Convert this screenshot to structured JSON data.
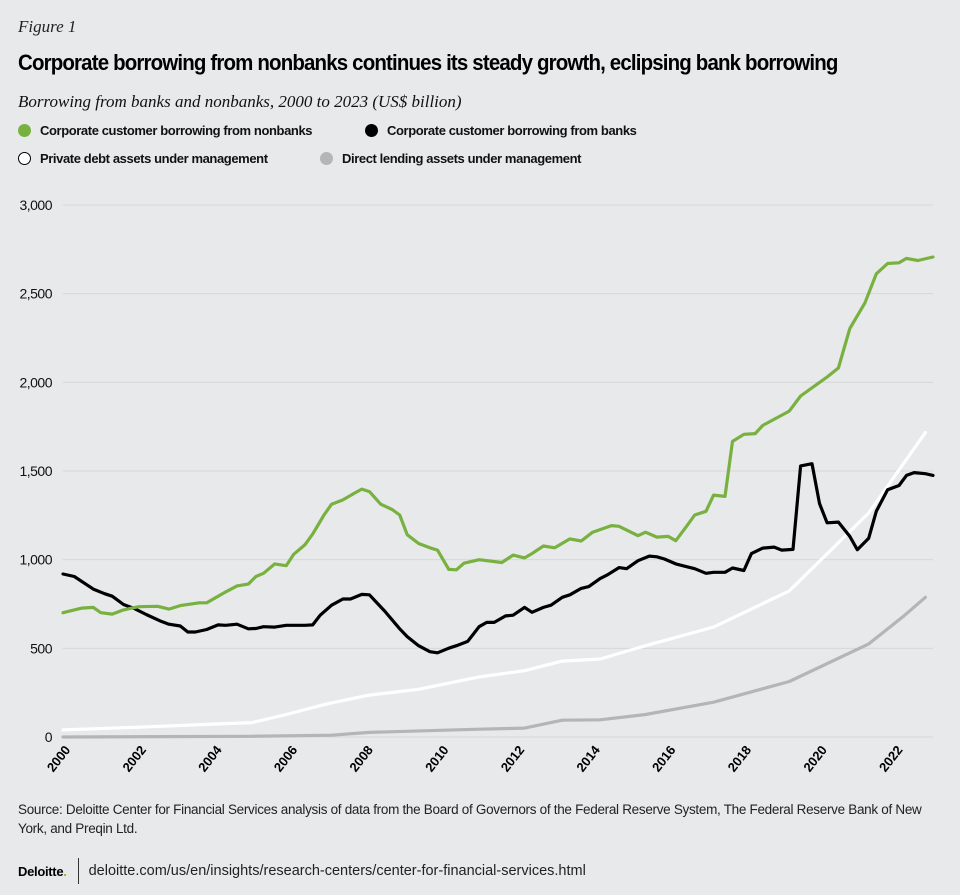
{
  "figure_label": "Figure 1",
  "footer": {
    "source": "Source: Deloitte Center for Financial Services analysis of data from the Board of Governors of the Federal Reserve System, The Federal Reserve Bank of New York, and Preqin Ltd.",
    "logo": "Deloitte",
    "url": "deloitte.com/us/en/insights/research-centers/center-for-financial-services.html"
  },
  "chart_data": {
    "type": "line",
    "title": "Corporate borrowing from nonbanks continues its steady growth, eclipsing bank borrowing",
    "subtitle": "Borrowing from banks and nonbanks, 2000 to 2023 (US$ billion)",
    "xlabel": "",
    "ylabel": "",
    "xlim": [
      2000,
      2023
    ],
    "ylim": [
      0,
      3000
    ],
    "x_ticks": [
      "2000",
      "2002",
      "2004",
      "2006",
      "2008",
      "2010",
      "2012",
      "2014",
      "2016",
      "2018",
      "2020",
      "2022"
    ],
    "y_ticks": [
      0,
      500,
      1000,
      1500,
      2000,
      2500,
      3000
    ],
    "y_tick_labels": [
      "0",
      "500",
      "1,000",
      "1,500",
      "2,000",
      "2,500",
      "3,000"
    ],
    "grid": "horizontal",
    "legend_position": "top",
    "series": [
      {
        "name": "Corporate customer borrowing from nonbanks",
        "color": "#78b13f",
        "legend_style": "filled",
        "points": [
          [
            2000.0,
            701
          ],
          [
            2000.5,
            727
          ],
          [
            2000.8,
            731
          ],
          [
            2001.0,
            701
          ],
          [
            2001.3,
            693
          ],
          [
            2001.6,
            717
          ],
          [
            2002.0,
            735
          ],
          [
            2002.5,
            737
          ],
          [
            2002.8,
            721
          ],
          [
            2003.1,
            741
          ],
          [
            2003.6,
            757
          ],
          [
            2003.8,
            757
          ],
          [
            2004.3,
            818
          ],
          [
            2004.6,
            852
          ],
          [
            2004.9,
            862
          ],
          [
            2005.1,
            905
          ],
          [
            2005.3,
            923
          ],
          [
            2005.6,
            976
          ],
          [
            2005.9,
            966
          ],
          [
            2006.1,
            1030
          ],
          [
            2006.4,
            1085
          ],
          [
            2006.6,
            1145
          ],
          [
            2006.9,
            1252
          ],
          [
            2007.1,
            1313
          ],
          [
            2007.4,
            1337
          ],
          [
            2007.7,
            1374
          ],
          [
            2007.9,
            1398
          ],
          [
            2008.1,
            1384
          ],
          [
            2008.4,
            1313
          ],
          [
            2008.7,
            1283
          ],
          [
            2008.9,
            1252
          ],
          [
            2009.1,
            1141
          ],
          [
            2009.4,
            1091
          ],
          [
            2009.7,
            1067
          ],
          [
            2009.9,
            1054
          ],
          [
            2010.2,
            945
          ],
          [
            2010.4,
            943
          ],
          [
            2010.6,
            980
          ],
          [
            2011.0,
            1000
          ],
          [
            2011.6,
            984
          ],
          [
            2011.9,
            1026
          ],
          [
            2012.2,
            1010
          ],
          [
            2012.4,
            1034
          ],
          [
            2012.7,
            1077
          ],
          [
            2013.0,
            1067
          ],
          [
            2013.4,
            1117
          ],
          [
            2013.7,
            1105
          ],
          [
            2014.0,
            1155
          ],
          [
            2014.5,
            1192
          ],
          [
            2014.7,
            1188
          ],
          [
            2015.2,
            1135
          ],
          [
            2015.4,
            1155
          ],
          [
            2015.7,
            1127
          ],
          [
            2016.0,
            1131
          ],
          [
            2016.2,
            1107
          ],
          [
            2016.5,
            1192
          ],
          [
            2016.7,
            1252
          ],
          [
            2017.0,
            1273
          ],
          [
            2017.2,
            1364
          ],
          [
            2017.5,
            1357
          ],
          [
            2017.7,
            1667
          ],
          [
            2018.0,
            1707
          ],
          [
            2018.3,
            1711
          ],
          [
            2018.5,
            1757
          ],
          [
            2019.2,
            1838
          ],
          [
            2019.5,
            1923
          ],
          [
            2020.2,
            2030
          ],
          [
            2020.5,
            2081
          ],
          [
            2020.8,
            2303
          ],
          [
            2021.2,
            2448
          ],
          [
            2021.5,
            2612
          ],
          [
            2021.8,
            2670
          ],
          [
            2022.1,
            2674
          ],
          [
            2022.3,
            2699
          ],
          [
            2022.6,
            2687
          ],
          [
            2023.0,
            2707
          ]
        ]
      },
      {
        "name": "Corporate customer borrowing from banks",
        "color": "#000000",
        "legend_style": "filled",
        "points": [
          [
            2000.0,
            919
          ],
          [
            2000.3,
            905
          ],
          [
            2000.6,
            862
          ],
          [
            2000.8,
            834
          ],
          [
            2001.1,
            808
          ],
          [
            2001.3,
            794
          ],
          [
            2001.6,
            747
          ],
          [
            2001.9,
            723
          ],
          [
            2002.2,
            691
          ],
          [
            2002.6,
            652
          ],
          [
            2002.8,
            636
          ],
          [
            2003.1,
            626
          ],
          [
            2003.3,
            592
          ],
          [
            2003.5,
            592
          ],
          [
            2003.8,
            606
          ],
          [
            2004.1,
            632
          ],
          [
            2004.3,
            630
          ],
          [
            2004.6,
            636
          ],
          [
            2004.9,
            610
          ],
          [
            2005.1,
            612
          ],
          [
            2005.3,
            622
          ],
          [
            2005.6,
            620
          ],
          [
            2005.9,
            630
          ],
          [
            2006.1,
            630
          ],
          [
            2006.4,
            630
          ],
          [
            2006.6,
            632
          ],
          [
            2006.8,
            687
          ],
          [
            2007.1,
            743
          ],
          [
            2007.4,
            778
          ],
          [
            2007.6,
            778
          ],
          [
            2007.9,
            804
          ],
          [
            2008.1,
            802
          ],
          [
            2008.5,
            711
          ],
          [
            2008.9,
            610
          ],
          [
            2009.1,
            566
          ],
          [
            2009.4,
            515
          ],
          [
            2009.7,
            481
          ],
          [
            2009.9,
            475
          ],
          [
            2010.2,
            501
          ],
          [
            2010.4,
            515
          ],
          [
            2010.7,
            539
          ],
          [
            2011.0,
            622
          ],
          [
            2011.2,
            646
          ],
          [
            2011.4,
            646
          ],
          [
            2011.7,
            683
          ],
          [
            2011.9,
            687
          ],
          [
            2012.2,
            731
          ],
          [
            2012.4,
            703
          ],
          [
            2012.7,
            731
          ],
          [
            2012.9,
            743
          ],
          [
            2013.2,
            788
          ],
          [
            2013.4,
            802
          ],
          [
            2013.7,
            838
          ],
          [
            2013.9,
            848
          ],
          [
            2014.2,
            893
          ],
          [
            2014.4,
            915
          ],
          [
            2014.7,
            955
          ],
          [
            2014.9,
            949
          ],
          [
            2015.2,
            994
          ],
          [
            2015.5,
            1020
          ],
          [
            2015.7,
            1016
          ],
          [
            2015.9,
            1004
          ],
          [
            2016.2,
            976
          ],
          [
            2016.5,
            960
          ],
          [
            2016.7,
            949
          ],
          [
            2017.0,
            923
          ],
          [
            2017.2,
            929
          ],
          [
            2017.5,
            929
          ],
          [
            2017.7,
            953
          ],
          [
            2018.0,
            939
          ],
          [
            2018.2,
            1034
          ],
          [
            2018.5,
            1065
          ],
          [
            2018.8,
            1071
          ],
          [
            2019.0,
            1054
          ],
          [
            2019.3,
            1058
          ],
          [
            2019.5,
            1529
          ],
          [
            2019.8,
            1541
          ],
          [
            2020.0,
            1317
          ],
          [
            2020.2,
            1208
          ],
          [
            2020.5,
            1212
          ],
          [
            2020.8,
            1131
          ],
          [
            2021.0,
            1056
          ],
          [
            2021.3,
            1121
          ],
          [
            2021.5,
            1273
          ],
          [
            2021.8,
            1394
          ],
          [
            2022.1,
            1418
          ],
          [
            2022.3,
            1475
          ],
          [
            2022.5,
            1491
          ],
          [
            2022.8,
            1485
          ],
          [
            2023.0,
            1475
          ]
        ]
      },
      {
        "name": "Private debt assets under management",
        "color": "#ffffff",
        "legend_style": "outline",
        "points": [
          [
            2000.0,
            40
          ],
          [
            2002.0,
            55
          ],
          [
            2003.8,
            71
          ],
          [
            2005.0,
            81
          ],
          [
            2005.9,
            127
          ],
          [
            2007.0,
            188
          ],
          [
            2008.1,
            236
          ],
          [
            2009.4,
            269
          ],
          [
            2011.0,
            339
          ],
          [
            2012.2,
            374
          ],
          [
            2013.2,
            428
          ],
          [
            2014.2,
            440
          ],
          [
            2015.4,
            515
          ],
          [
            2017.2,
            620
          ],
          [
            2019.2,
            824
          ],
          [
            2021.3,
            1263
          ],
          [
            2022.8,
            1717
          ]
        ]
      },
      {
        "name": "Direct lending assets under management",
        "color": "#b5b5b5",
        "legend_style": "filled",
        "points": [
          [
            2000.0,
            0
          ],
          [
            2005.0,
            4
          ],
          [
            2007.1,
            10
          ],
          [
            2008.1,
            26
          ],
          [
            2011.0,
            44
          ],
          [
            2012.2,
            50
          ],
          [
            2013.2,
            95
          ],
          [
            2014.2,
            97
          ],
          [
            2015.4,
            127
          ],
          [
            2017.2,
            196
          ],
          [
            2019.2,
            313
          ],
          [
            2021.3,
            525
          ],
          [
            2022.2,
            677
          ],
          [
            2022.8,
            788
          ]
        ]
      }
    ]
  }
}
